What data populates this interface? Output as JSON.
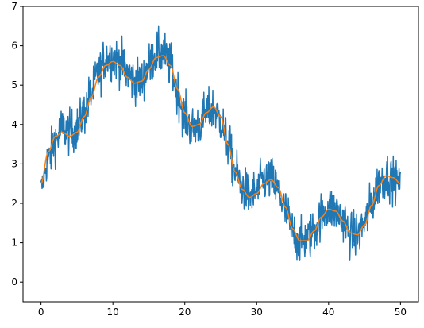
{
  "chart_data": {
    "type": "line",
    "title": "",
    "xlabel": "",
    "ylabel": "",
    "xlim": [
      -2.5,
      52.5
    ],
    "ylim": [
      -0.5,
      7.0
    ],
    "xticks": [
      0,
      10,
      20,
      30,
      40,
      50
    ],
    "yticks": [
      0,
      1,
      2,
      3,
      4,
      5,
      6,
      7
    ],
    "grid": false,
    "legend": "none",
    "series": [
      {
        "color": "#1f77b4",
        "style": "noisy",
        "x": [
          0,
          1,
          2,
          3,
          4,
          5,
          6,
          7,
          8,
          9,
          10,
          11,
          12,
          13,
          14,
          15,
          16,
          17,
          18,
          19,
          20,
          21,
          22,
          23,
          24,
          25,
          26,
          27,
          28,
          29,
          30,
          31,
          32,
          33,
          34,
          35,
          36,
          37,
          38,
          39,
          40,
          41,
          42,
          43,
          44,
          45,
          46,
          47,
          48,
          49,
          50
        ],
        "y": [
          2.4,
          3.1,
          3.6,
          3.9,
          3.8,
          3.9,
          4.3,
          4.8,
          5.3,
          5.7,
          5.7,
          5.6,
          5.3,
          5.1,
          5.1,
          5.5,
          5.8,
          5.8,
          5.5,
          4.8,
          4.2,
          3.9,
          4.0,
          4.3,
          4.4,
          4.1,
          3.5,
          2.8,
          2.4,
          2.2,
          2.3,
          2.6,
          2.6,
          2.3,
          1.8,
          1.3,
          1.0,
          1.1,
          1.3,
          1.7,
          1.9,
          1.8,
          1.6,
          1.2,
          1.2,
          1.5,
          2.0,
          2.5,
          2.7,
          2.6,
          2.5
        ],
        "spread": [
          0.5,
          0.8,
          0.8,
          0.8,
          0.8,
          0.8,
          0.8,
          0.8,
          0.8,
          0.8,
          0.8,
          0.8,
          0.8,
          0.8,
          0.8,
          0.8,
          0.8,
          0.8,
          0.8,
          0.8,
          0.8,
          0.8,
          0.8,
          0.8,
          0.8,
          0.8,
          0.8,
          0.8,
          0.8,
          0.8,
          0.8,
          0.8,
          0.8,
          0.8,
          0.8,
          0.8,
          0.8,
          0.8,
          0.8,
          0.8,
          0.8,
          0.8,
          0.8,
          0.8,
          0.8,
          0.8,
          0.8,
          0.8,
          0.8,
          0.8,
          0.5
        ]
      },
      {
        "color": "#ff7f0e",
        "style": "smooth",
        "x": [
          0,
          1,
          2,
          3,
          4,
          5,
          6,
          7,
          8,
          9,
          10,
          11,
          12,
          13,
          14,
          15,
          16,
          17,
          18,
          19,
          20,
          21,
          22,
          23,
          24,
          25,
          26,
          27,
          28,
          29,
          30,
          31,
          32,
          33,
          34,
          35,
          36,
          37,
          38,
          39,
          40,
          41,
          42,
          43,
          44,
          45,
          46,
          47,
          48,
          49,
          50
        ],
        "y": [
          2.5,
          3.3,
          3.7,
          3.8,
          3.7,
          3.8,
          4.2,
          4.7,
          5.2,
          5.5,
          5.6,
          5.5,
          5.2,
          5.05,
          5.1,
          5.4,
          5.7,
          5.75,
          5.5,
          4.9,
          4.3,
          3.95,
          4.0,
          4.3,
          4.45,
          4.2,
          3.5,
          2.8,
          2.35,
          2.15,
          2.25,
          2.5,
          2.6,
          2.4,
          1.9,
          1.35,
          1.05,
          1.05,
          1.3,
          1.65,
          1.85,
          1.8,
          1.55,
          1.25,
          1.2,
          1.45,
          1.95,
          2.45,
          2.7,
          2.65,
          2.5
        ]
      }
    ]
  }
}
